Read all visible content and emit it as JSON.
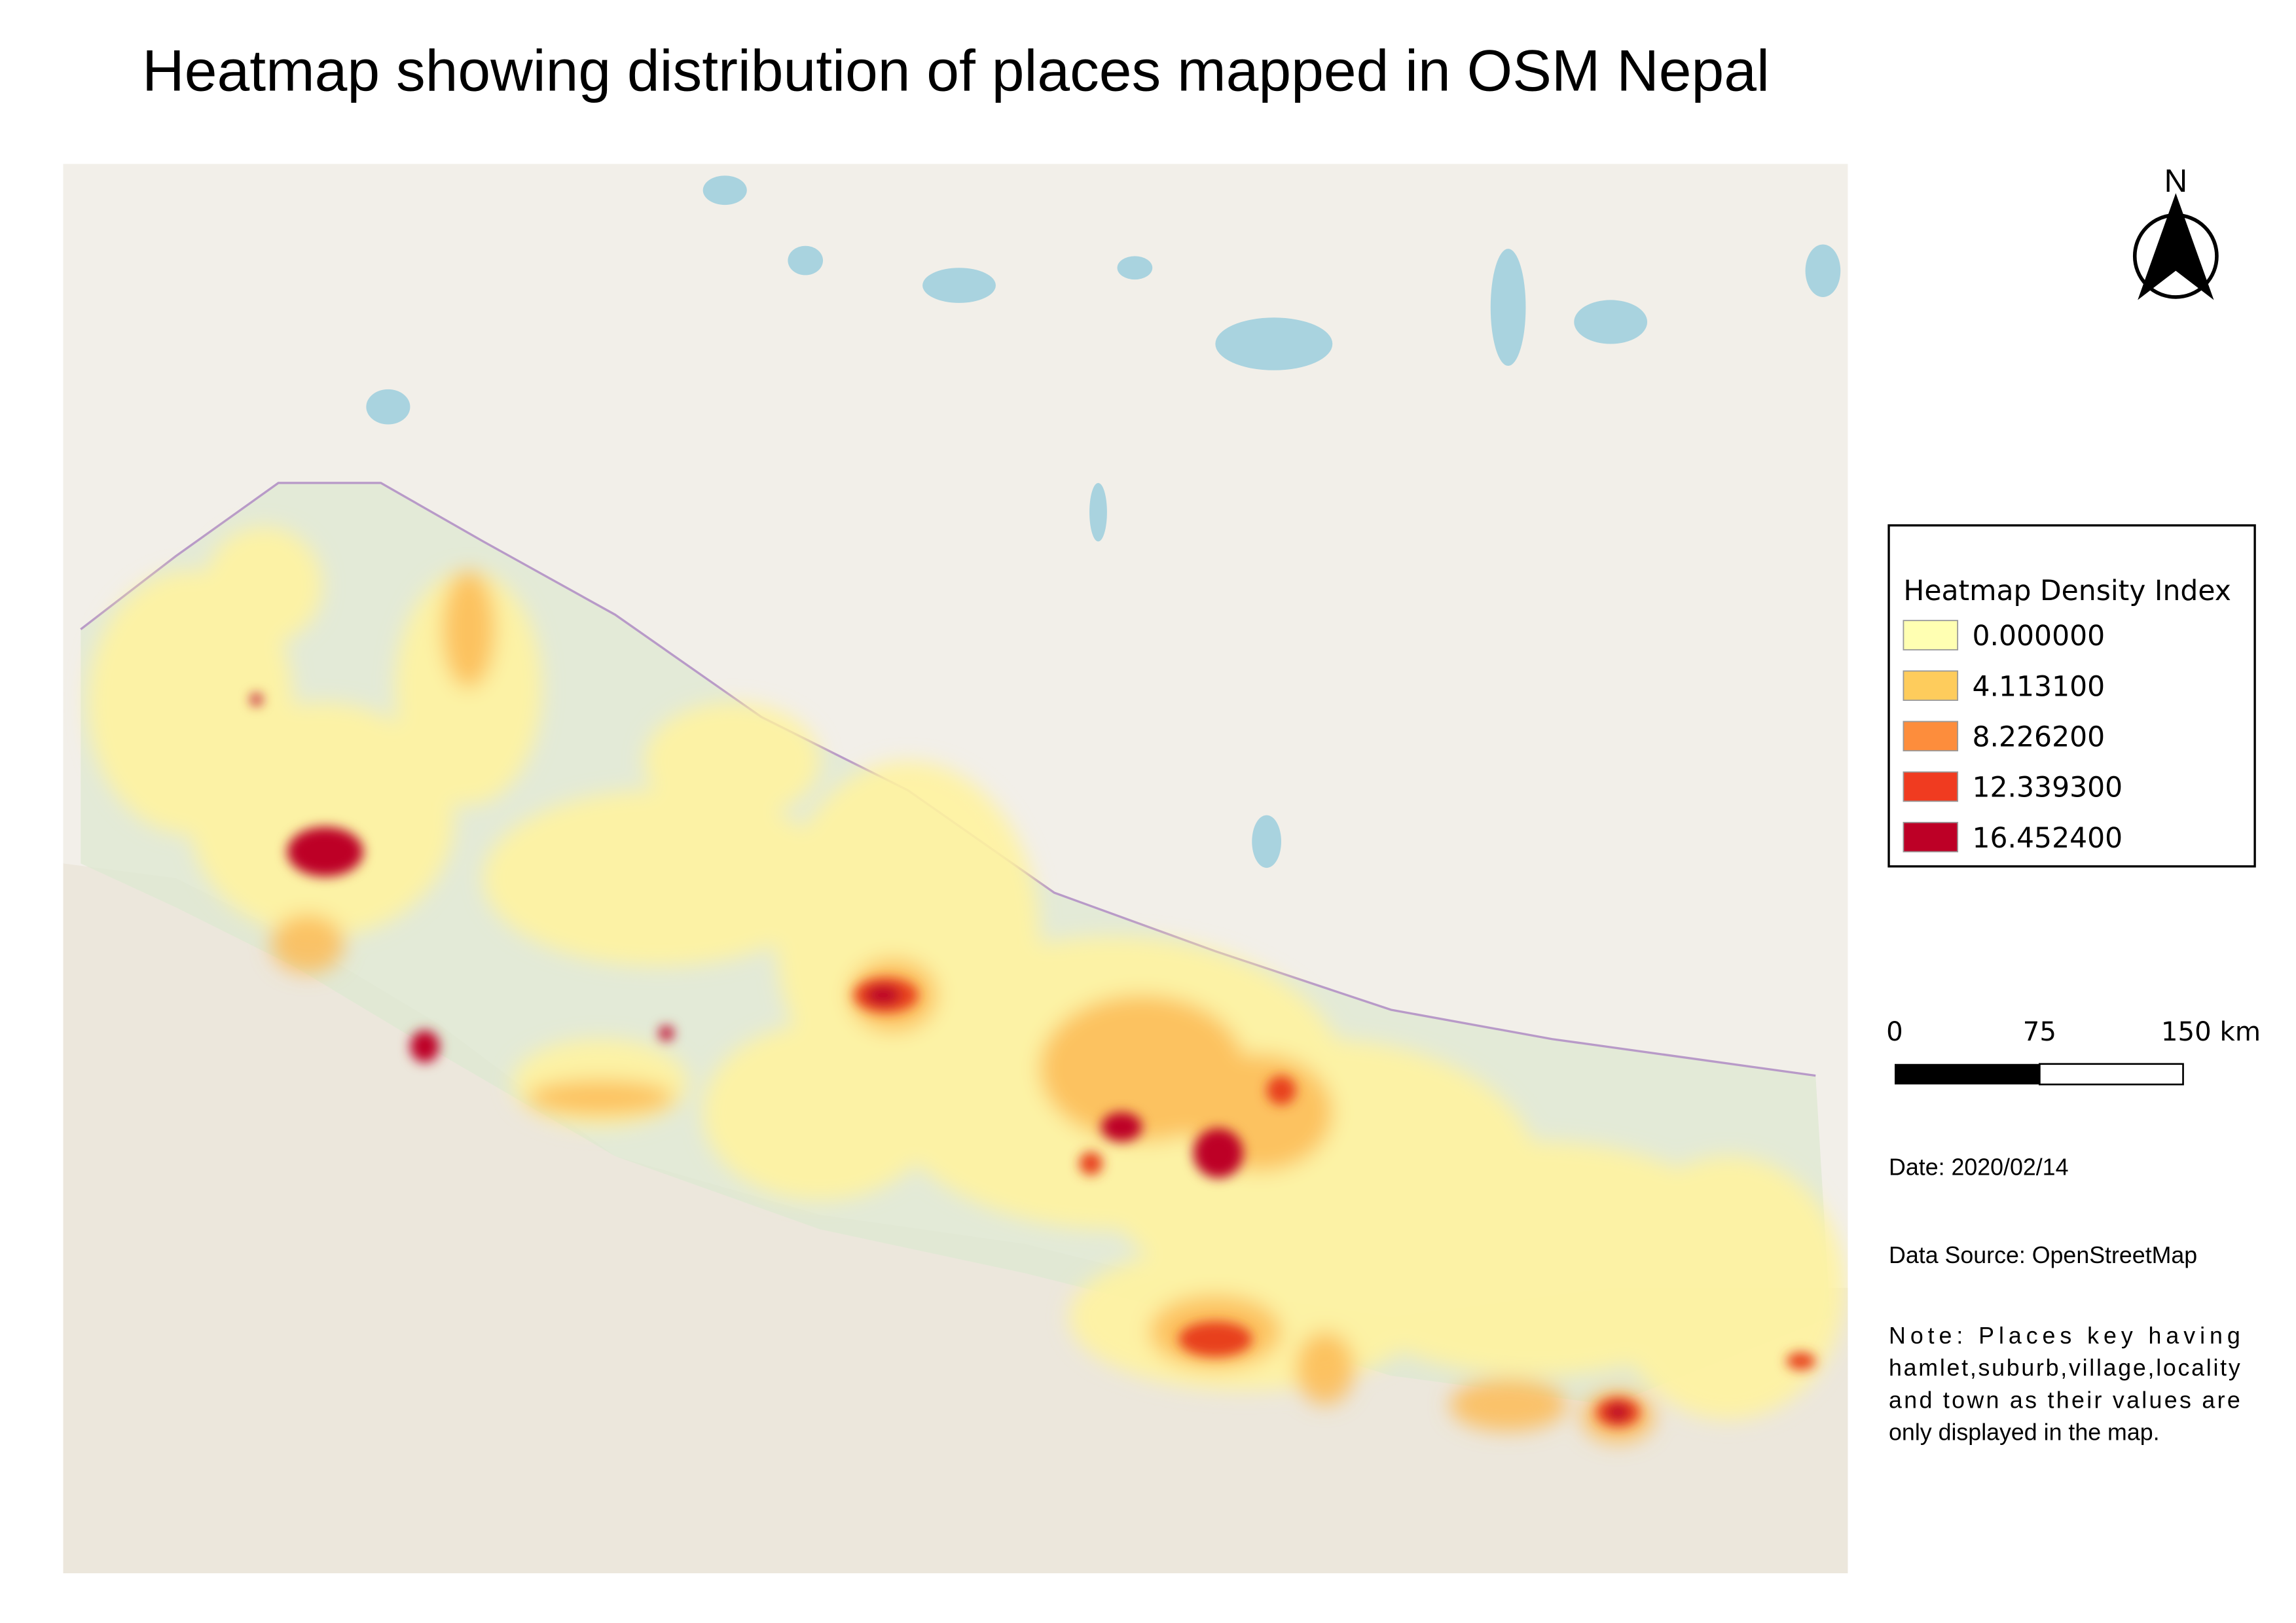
{
  "title": "Heatmap showing distribution of places mapped in OSM Nepal",
  "north_arrow": "N",
  "legend": {
    "title": "Heatmap Density Index",
    "items": [
      {
        "label": "0.000000",
        "color": "#ffffb2"
      },
      {
        "label": "4.113100",
        "color": "#fecc5c"
      },
      {
        "label": "8.226200",
        "color": "#fd8d3c"
      },
      {
        "label": "12.339300",
        "color": "#f03b20"
      },
      {
        "label": "16.452400",
        "color": "#bd0026"
      }
    ]
  },
  "scale_bar": {
    "labels": [
      "0",
      "75",
      "150 km"
    ]
  },
  "date": "Date: 2020/02/14",
  "data_source": "Data Source: OpenStreetMap",
  "note": {
    "lines": [
      "Note: Places key having",
      "hamlet,suburb,village,locality",
      "and town as their values are",
      "only displayed in the map."
    ]
  }
}
